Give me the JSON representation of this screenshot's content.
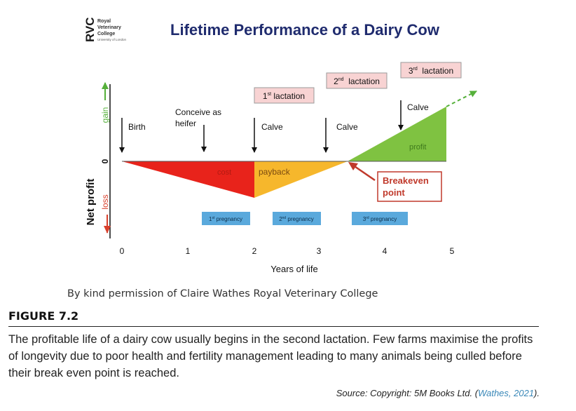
{
  "logo": {
    "mark": "RVC",
    "line1": "Royal",
    "line2": "Veterinary",
    "line3": "College",
    "line4": "University of London"
  },
  "title": "Lifetime Performance of a Dairy Cow",
  "axes": {
    "y_label": "Net profit",
    "y_gain": "gain",
    "y_loss": "loss",
    "y_zero": "0",
    "x_label": "Years of life",
    "x_ticks": [
      "0",
      "1",
      "2",
      "3",
      "4",
      "5"
    ]
  },
  "events": {
    "birth": "Birth",
    "conceive_line1": "Conceive as",
    "conceive_line2": "heifer",
    "calve1": "Calve",
    "calve2": "Calve",
    "calve3": "Calve"
  },
  "lactations": {
    "first_num": "1",
    "first_sup": "st",
    "first_word": " lactation",
    "second_num": "2",
    "second_sup": "nd",
    "second_word": "  lactation",
    "third_num": "3",
    "third_sup": "rd",
    "third_word": "  lactation"
  },
  "regions": {
    "cost": "cost",
    "payback": "payback",
    "profit": "profit",
    "breakeven_line1": "Breakeven",
    "breakeven_line2": "point"
  },
  "pregnancies": {
    "p1_num": "1",
    "p1_sup": "st",
    "p1_word": " pregnancy",
    "p2_num": "2",
    "p2_sup": "nd",
    "p2_word": " pregnancy",
    "p3_num": "3",
    "p3_sup": "rd",
    "p3_word": " pregnancy"
  },
  "colors": {
    "cost": "#e8231b",
    "payback": "#f6b72c",
    "profit": "#7fc241",
    "pregnancy_box": "#5aa9dc",
    "lactation_box": "#f8d3d3",
    "breakeven_text": "#c0392b",
    "loss_red": "#d9402c",
    "gain_green": "#55b03a",
    "title_navy": "#1f2b6e"
  },
  "permission": "By kind permission of Claire Wathes Royal Veterinary College",
  "figure_label": "FIGURE 7.2",
  "caption": "The profitable life of a dairy cow usually begins in the second lactation. Few farms maximise the profits of longevity due to poor health and fertility management leading to many animals being culled before their break even point is reached.",
  "source": {
    "prefix": "Source: Copyright: 5M Books Ltd. (",
    "ref": "Wathes, 2021",
    "suffix": ")."
  }
}
